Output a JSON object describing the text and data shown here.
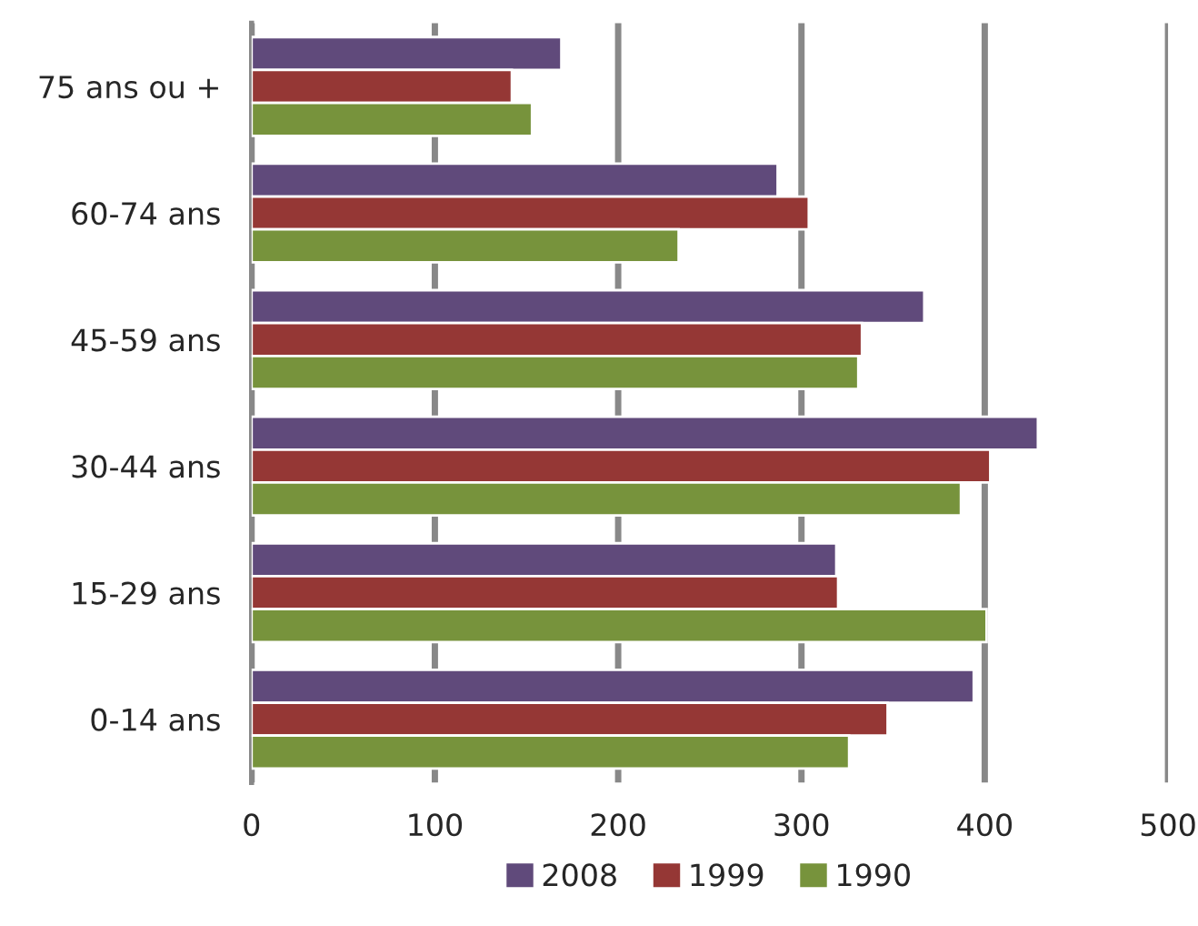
{
  "chart_data": {
    "type": "bar",
    "orientation": "horizontal",
    "categories": [
      "75 ans ou +",
      "60-74 ans",
      "45-59 ans",
      "30-44 ans",
      "15-29 ans",
      "0-14 ans"
    ],
    "series": [
      {
        "name": "2008",
        "color": "#604a7b",
        "values": [
          169,
          287,
          367,
          429,
          319,
          394
        ]
      },
      {
        "name": "1999",
        "color": "#953735",
        "values": [
          142,
          304,
          333,
          403,
          320,
          347
        ]
      },
      {
        "name": "1990",
        "color": "#77933c",
        "values": [
          153,
          233,
          331,
          387,
          401,
          326
        ]
      }
    ],
    "xlim": [
      0,
      500
    ],
    "xticks": [
      0,
      100,
      200,
      300,
      400,
      500
    ],
    "grid": "x",
    "legend": "bottom"
  }
}
